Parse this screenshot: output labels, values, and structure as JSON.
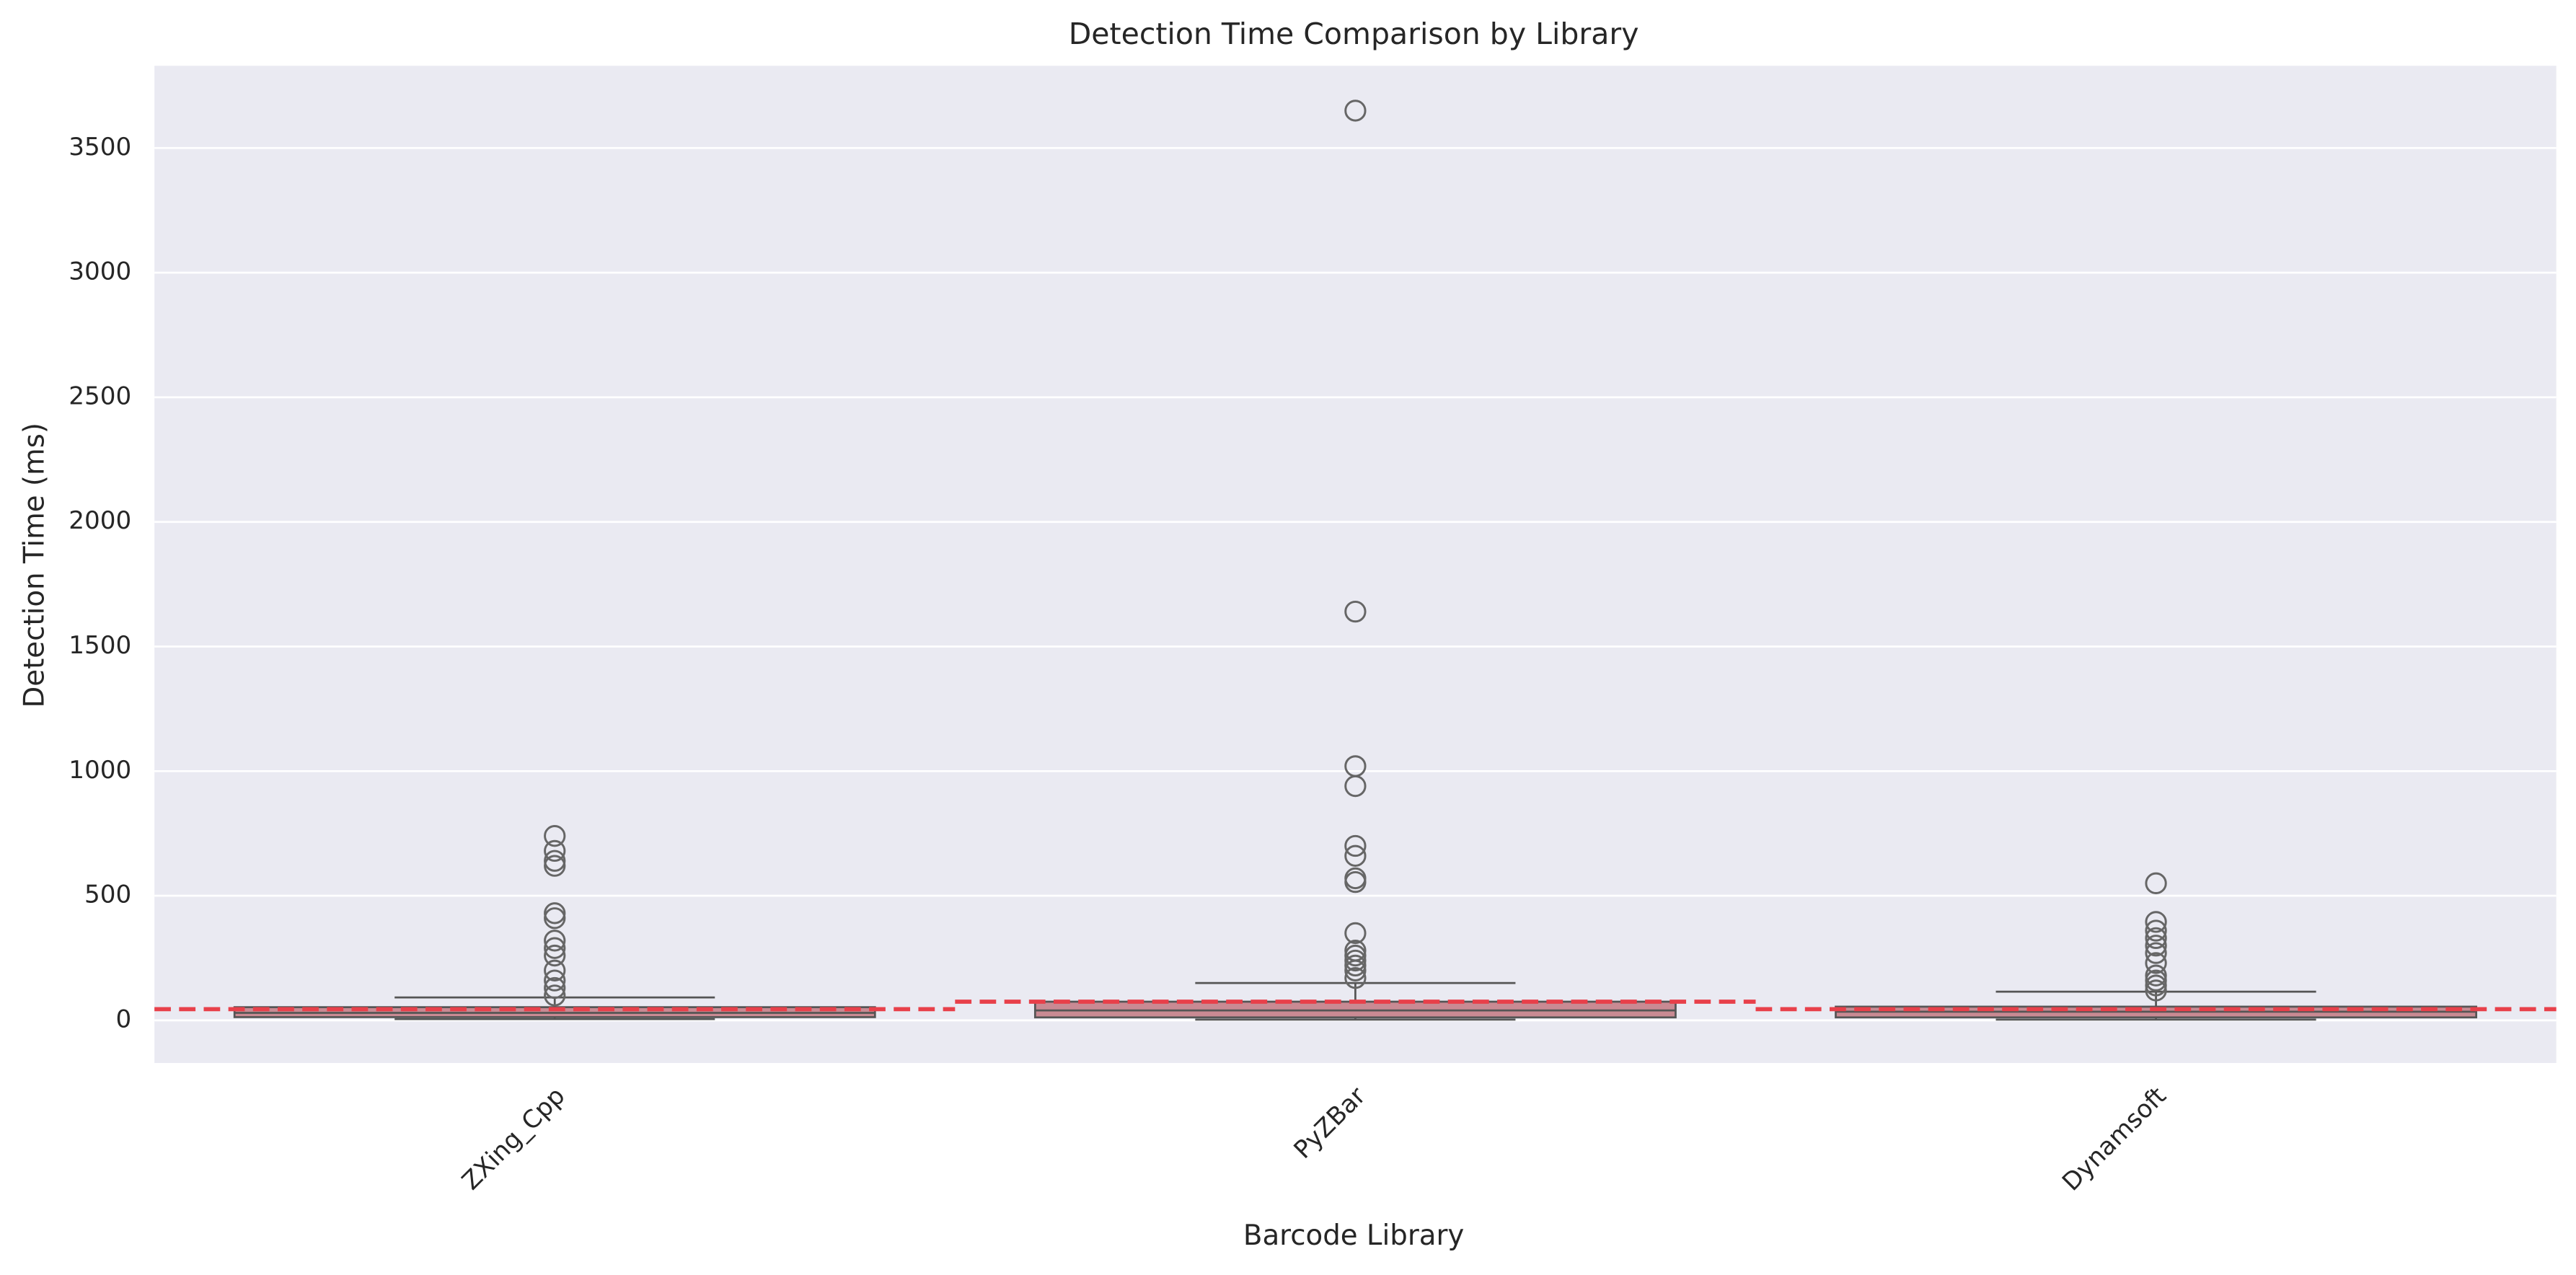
{
  "chart_data": {
    "type": "box",
    "title": "Detection Time Comparison by Library",
    "x_label": "Barcode Library",
    "y_label": "Detection Time (ms)",
    "categories": [
      "ZXing_Cpp",
      "PyZBar",
      "Dynamsoft"
    ],
    "boxes": [
      {
        "whisker_low": 5,
        "q1": 13,
        "median": 30,
        "q3": 53,
        "whisker_high": 92,
        "outliers": [
          740,
          680,
          640,
          620,
          430,
          410,
          320,
          290,
          260,
          200,
          160,
          130,
          100
        ]
      },
      {
        "whisker_low": 3,
        "q1": 12,
        "median": 40,
        "q3": 75,
        "whisker_high": 150,
        "outliers": [
          3650,
          1640,
          1020,
          940,
          700,
          660,
          570,
          555,
          350,
          280,
          260,
          240,
          220,
          200,
          170
        ]
      },
      {
        "whisker_low": 3,
        "q1": 12,
        "median": 35,
        "q3": 55,
        "whisker_high": 115,
        "outliers": [
          550,
          395,
          360,
          330,
          300,
          270,
          230,
          180,
          160,
          140,
          120
        ]
      }
    ],
    "means": [
      45,
      75,
      45
    ],
    "box_color": "#c98a93",
    "mean_color": "#e8404a",
    "ylim": [
      -171,
      3830
    ],
    "yticks": [
      0,
      500,
      1000,
      1500,
      2000,
      2500,
      3000,
      3500
    ],
    "grid": true
  }
}
